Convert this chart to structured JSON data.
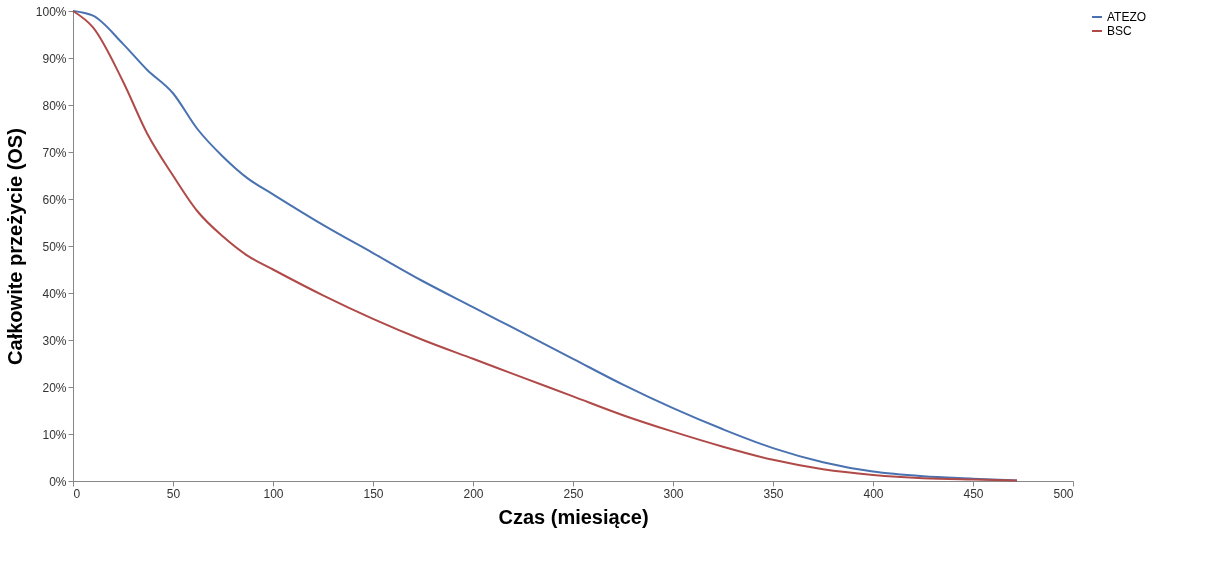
{
  "chart_data": {
    "type": "line",
    "xlabel": "Czas (miesiące)",
    "ylabel": "Całkowite przeżycie (OS)",
    "x": [
      0,
      10,
      25,
      37,
      50,
      62,
      75,
      87,
      100,
      125,
      150,
      175,
      200,
      225,
      250,
      275,
      300,
      325,
      350,
      375,
      400,
      425,
      450,
      472
    ],
    "series": [
      {
        "name": "ATEZO",
        "color": "#4a72b0",
        "values": [
          100,
          99,
          93,
          87.5,
          82.5,
          75,
          69,
          64.5,
          61,
          54.5,
          48.5,
          42.5,
          37,
          31.5,
          26,
          20.5,
          15.5,
          11,
          7,
          4,
          2,
          1,
          0.5,
          0.1
        ]
      },
      {
        "name": "BSC",
        "color": "#b04a48",
        "values": [
          100,
          96.5,
          85,
          74,
          65,
          57.5,
          52,
          48,
          45,
          39.5,
          34.5,
          30,
          26,
          22,
          18,
          14,
          10.5,
          7.3,
          4.5,
          2.5,
          1.3,
          0.6,
          0.3,
          0.1
        ]
      }
    ],
    "xlim": [
      0,
      500
    ],
    "xticks": [
      0,
      50,
      100,
      150,
      200,
      250,
      300,
      350,
      400,
      450,
      500
    ],
    "ylim": [
      0,
      100
    ],
    "yticks": [
      {
        "value": 0,
        "label": "0%"
      },
      {
        "value": 10,
        "label": "10%"
      },
      {
        "value": 20,
        "label": "20%"
      },
      {
        "value": 30,
        "label": "30%"
      },
      {
        "value": 40,
        "label": "40%"
      },
      {
        "value": 50,
        "label": "50%"
      },
      {
        "value": 60,
        "label": "60%"
      },
      {
        "value": 70,
        "label": "70%"
      },
      {
        "value": 80,
        "label": "80%"
      },
      {
        "value": 90,
        "label": "90%"
      },
      {
        "value": 100,
        "label": "100%"
      }
    ],
    "grid": false,
    "legend": "right",
    "marker": "none",
    "line_style": "solid"
  }
}
